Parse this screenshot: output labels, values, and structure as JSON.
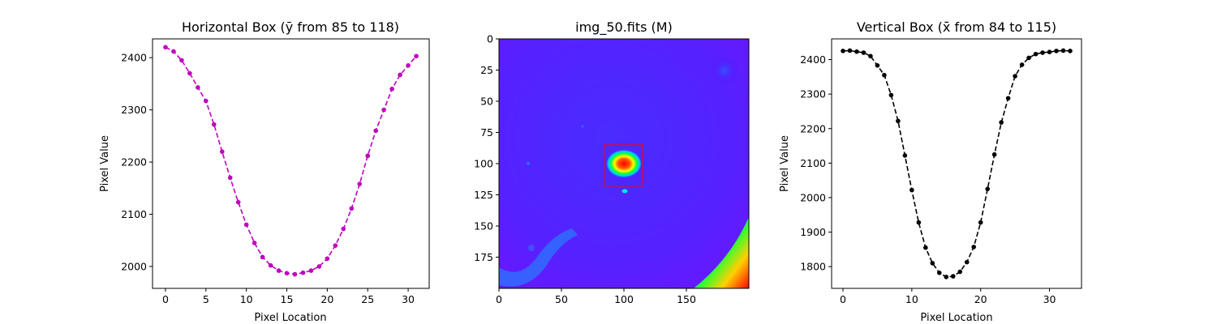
{
  "chart_data": [
    {
      "type": "line",
      "title": "Horizontal Box (ȳ from 85 to 118)",
      "xlabel": "Pixel Location",
      "ylabel": "Pixel Value",
      "xlim": [
        -1.6,
        32.6
      ],
      "ylim": [
        1958,
        2436
      ],
      "xticks": [
        0,
        5,
        10,
        15,
        20,
        25,
        30
      ],
      "yticks": [
        2000,
        2100,
        2200,
        2300,
        2400
      ],
      "grid": false,
      "color": "#bf00bf",
      "line_style": "dashed",
      "marker": "circle",
      "series": [
        {
          "x": [
            0,
            1,
            2,
            3,
            4,
            5,
            6,
            7,
            8,
            9,
            10,
            11,
            12,
            13,
            14,
            15,
            16,
            17,
            18,
            19,
            20,
            21,
            22,
            23,
            24,
            25,
            26,
            27,
            28,
            29,
            30,
            31
          ],
          "values": [
            2420,
            2412,
            2395,
            2370,
            2343,
            2317,
            2272,
            2220,
            2170,
            2123,
            2080,
            2045,
            2018,
            2002,
            1992,
            1987,
            1985,
            1988,
            1992,
            2000,
            2015,
            2040,
            2072,
            2111,
            2158,
            2212,
            2260,
            2300,
            2340,
            2367,
            2385,
            2403
          ]
        }
      ]
    },
    {
      "type": "heatmap",
      "title": "img_50.fits (M)",
      "colormap": "gist_rainbow_r",
      "xlim": [
        0,
        200
      ],
      "ylim": [
        200,
        0
      ],
      "xticks": [
        0,
        50,
        100,
        150
      ],
      "yticks": [
        0,
        25,
        50,
        75,
        100,
        125,
        150,
        175
      ],
      "source": {
        "center": [
          100,
          100
        ],
        "radius": [
          14,
          11
        ]
      },
      "minor_source": {
        "center": [
          100,
          123
        ]
      },
      "box": {
        "x": [
          84,
          115
        ],
        "y": [
          85,
          118
        ],
        "color": "#ff0000"
      }
    },
    {
      "type": "line",
      "title": "Vertical Box (x̄ from 84 to 115)",
      "xlabel": "Pixel Location",
      "ylabel": "Pixel Value",
      "xlim": [
        -1.65,
        34.65
      ],
      "ylim": [
        1737,
        2460
      ],
      "xticks": [
        0,
        10,
        20,
        30
      ],
      "yticks": [
        1800,
        1900,
        2000,
        2100,
        2200,
        2300,
        2400
      ],
      "grid": false,
      "color": "#000000",
      "line_style": "dashed",
      "marker": "circle",
      "series": [
        {
          "x": [
            0,
            1,
            2,
            3,
            4,
            5,
            6,
            7,
            8,
            9,
            10,
            11,
            12,
            13,
            14,
            15,
            16,
            17,
            18,
            19,
            20,
            21,
            22,
            23,
            24,
            25,
            26,
            27,
            28,
            29,
            30,
            31,
            32,
            33
          ],
          "values": [
            2425,
            2426,
            2423,
            2420,
            2410,
            2383,
            2355,
            2297,
            2222,
            2122,
            2022,
            1928,
            1855,
            1810,
            1782,
            1770,
            1772,
            1785,
            1813,
            1857,
            1928,
            2025,
            2125,
            2218,
            2288,
            2352,
            2385,
            2405,
            2416,
            2420,
            2422,
            2425,
            2426,
            2425
          ]
        }
      ]
    }
  ]
}
